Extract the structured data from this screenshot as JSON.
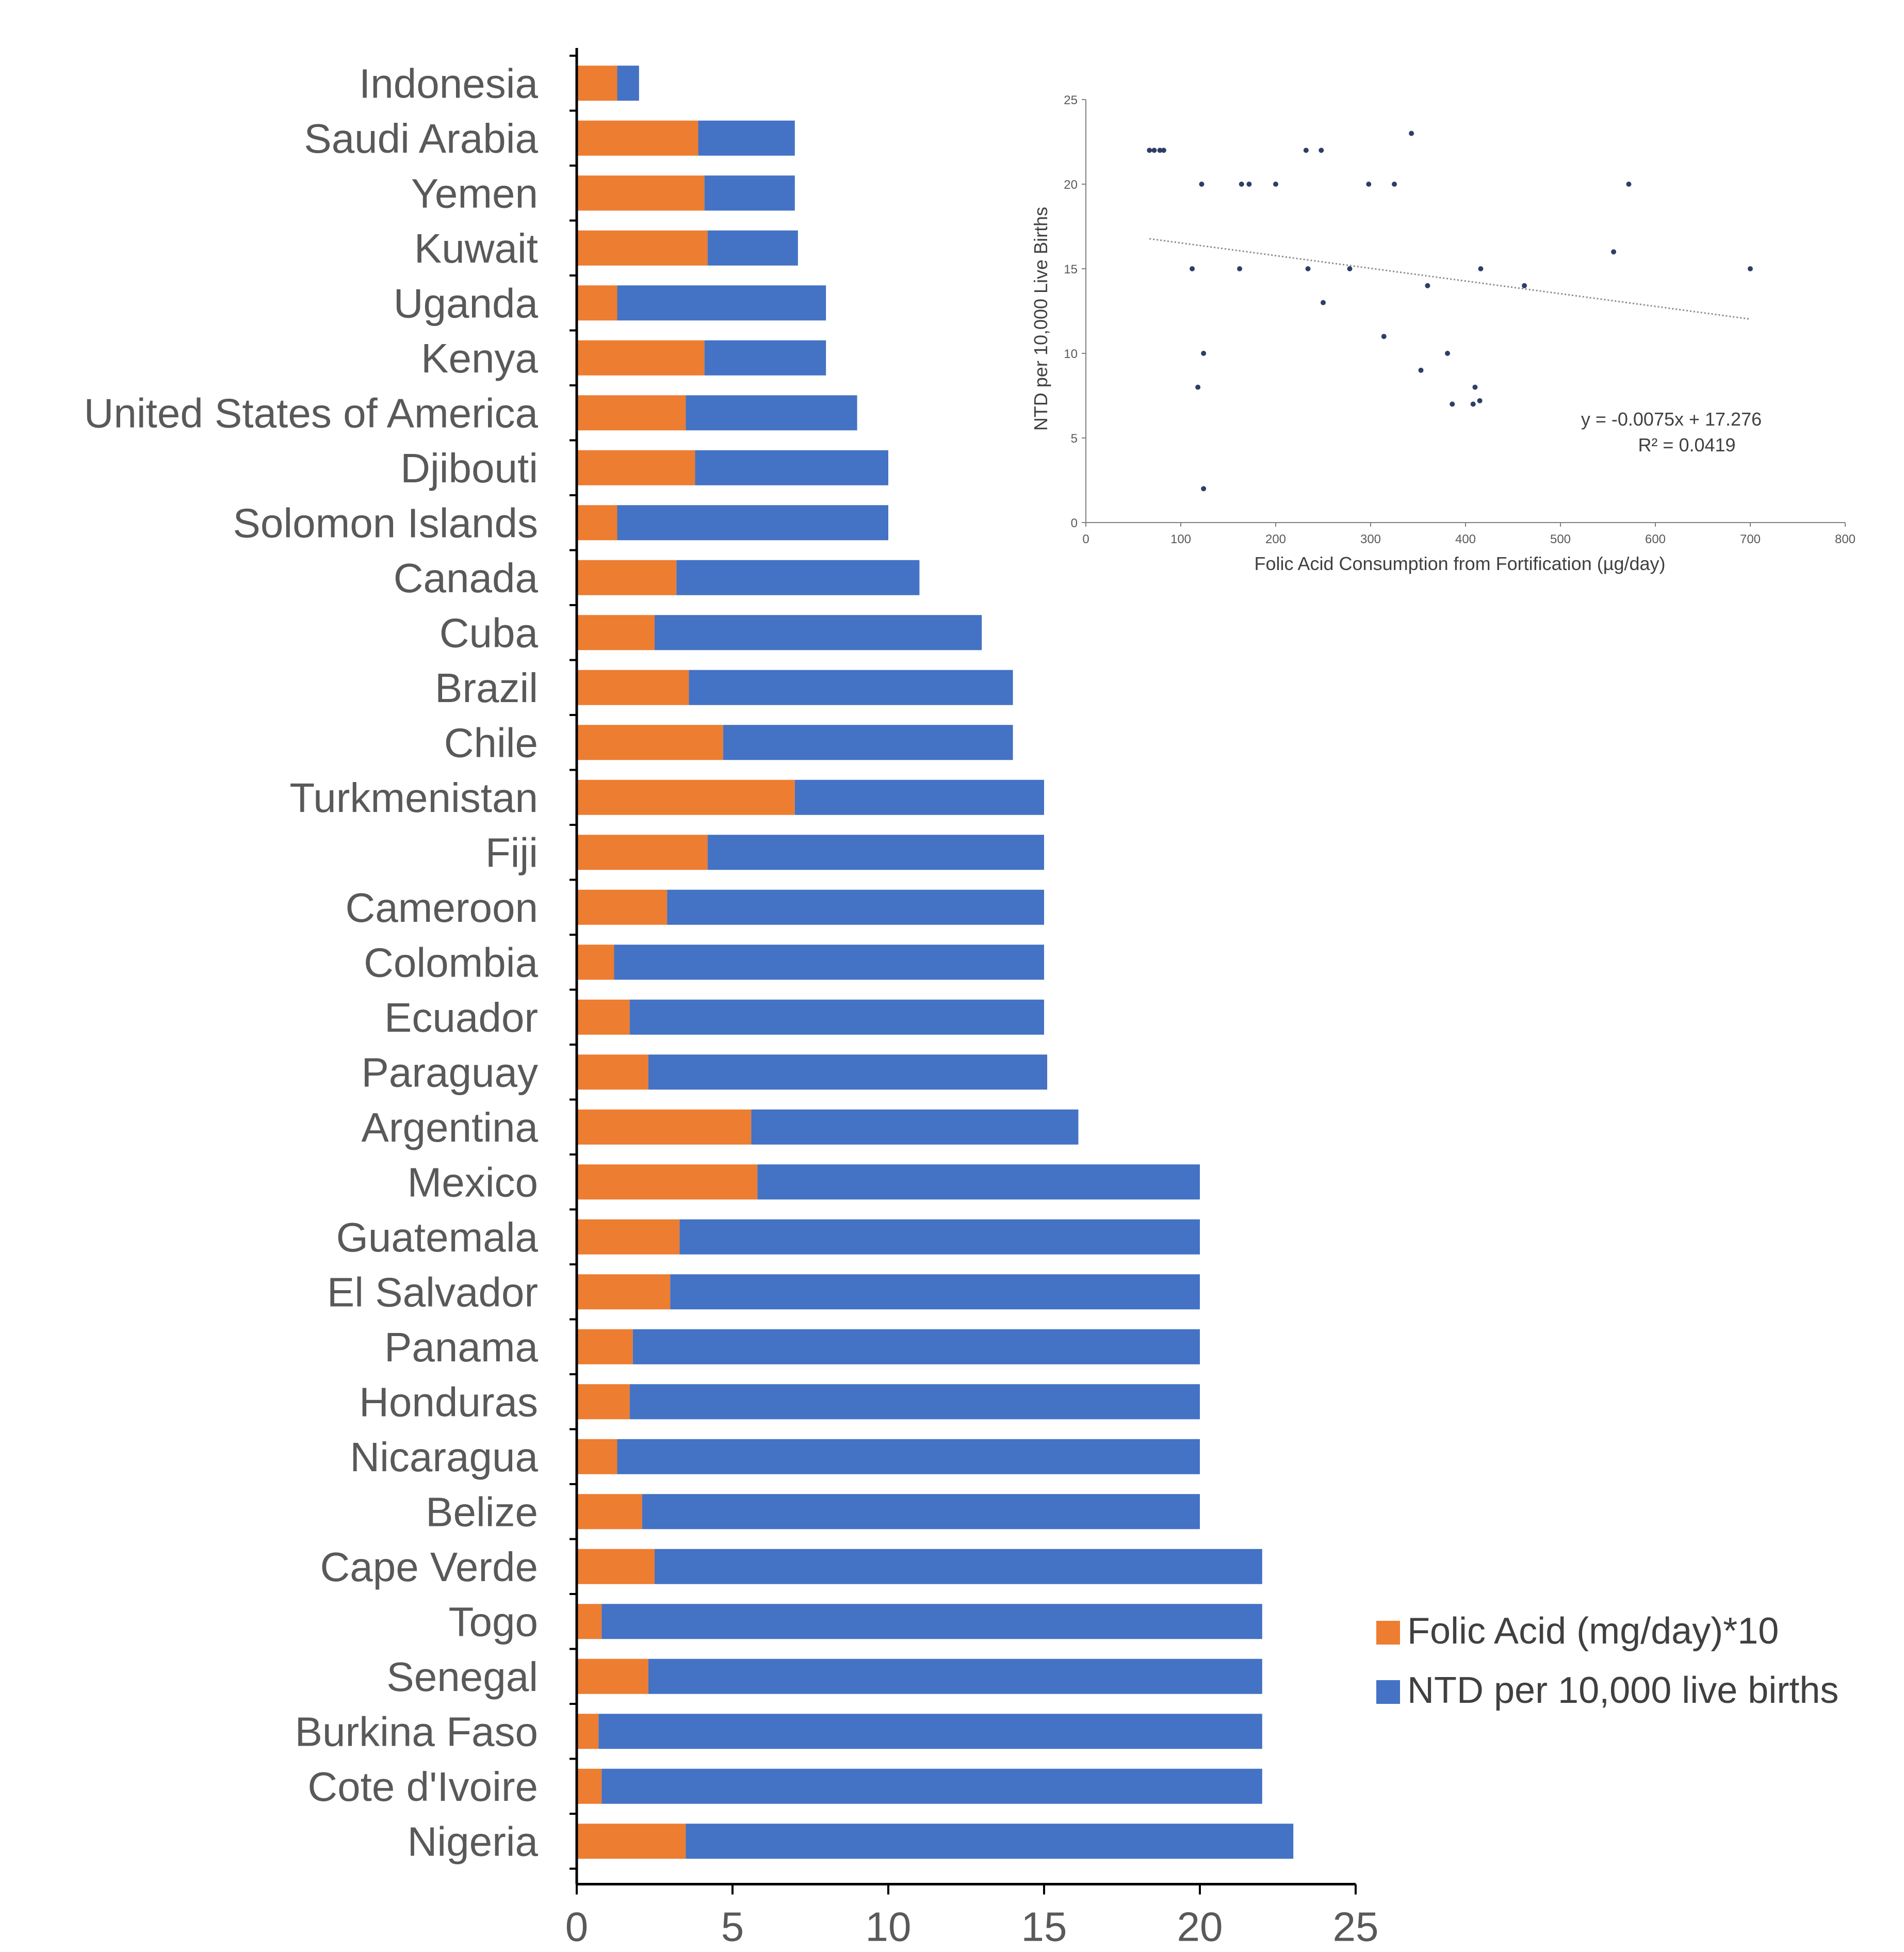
{
  "colors": {
    "folic": "#ED7D31",
    "ntd": "#4472C4",
    "axis": "#000000",
    "point": "#2E3F66",
    "trend": "#8C8C8C"
  },
  "chart_data": [
    {
      "type": "bar",
      "orientation": "horizontal",
      "stacked": true,
      "categories": [
        "Indonesia",
        "Saudi Arabia",
        "Yemen",
        "Kuwait",
        "Uganda",
        "Kenya",
        "United States of America",
        "Djibouti",
        "Solomon Islands",
        "Canada",
        "Cuba",
        "Brazil",
        "Chile",
        "Turkmenistan",
        "Fiji",
        "Cameroon",
        "Colombia",
        "Ecuador",
        "Paraguay",
        "Argentina",
        "Mexico",
        "Guatemala",
        "El Salvador",
        "Panama",
        "Honduras",
        "Nicaragua",
        "Belize",
        "Cape Verde",
        "Togo",
        "Senegal",
        "Burkina Faso",
        "Cote d'Ivoire",
        "Nigeria"
      ],
      "series": [
        {
          "name": "Folic Acid (mg/day)*10",
          "values": [
            1.3,
            3.9,
            4.1,
            4.2,
            1.3,
            4.1,
            3.5,
            3.8,
            1.3,
            3.2,
            2.5,
            3.6,
            4.7,
            7.0,
            4.2,
            2.9,
            1.2,
            1.7,
            2.3,
            5.6,
            5.8,
            3.3,
            3.0,
            1.8,
            1.7,
            1.3,
            2.1,
            2.5,
            0.8,
            2.3,
            0.7,
            0.8,
            3.5
          ]
        },
        {
          "name": "NTD per 10,000 live births",
          "values": [
            0.7,
            3.1,
            2.9,
            2.9,
            6.7,
            3.9,
            5.5,
            6.2,
            8.7,
            7.8,
            10.5,
            10.4,
            9.3,
            8.0,
            10.8,
            12.1,
            13.8,
            13.3,
            12.8,
            10.5,
            14.2,
            16.7,
            17.0,
            18.2,
            18.3,
            18.7,
            17.9,
            19.5,
            21.2,
            19.7,
            21.3,
            21.2,
            19.5
          ]
        }
      ],
      "xlim": [
        0,
        25
      ],
      "xticks": [
        "0",
        "5",
        "10",
        "15",
        "20",
        "25"
      ],
      "legend": "right",
      "legend_entries": [
        "Folic Acid (mg/day)*10",
        "NTD per 10,000 live births"
      ]
    },
    {
      "type": "scatter",
      "xlabel": "Folic Acid Consumption from Fortification (µg/day)",
      "ylabel": "NTD per 10,000 Live Births",
      "xlim": [
        0,
        800
      ],
      "ylim": [
        0,
        25
      ],
      "xticks": [
        "0",
        "100",
        "200",
        "300",
        "400",
        "500",
        "600",
        "700",
        "800"
      ],
      "yticks": [
        "0",
        "5",
        "10",
        "15",
        "20",
        "25"
      ],
      "points": [
        [
          67,
          22
        ],
        [
          72,
          22
        ],
        [
          78,
          22
        ],
        [
          82,
          22
        ],
        [
          112,
          15
        ],
        [
          118,
          8
        ],
        [
          122,
          20
        ],
        [
          124,
          10
        ],
        [
          124,
          2
        ],
        [
          162,
          15
        ],
        [
          164,
          20
        ],
        [
          172,
          20
        ],
        [
          200,
          20
        ],
        [
          232,
          22
        ],
        [
          234,
          15
        ],
        [
          248,
          22
        ],
        [
          250,
          13
        ],
        [
          278,
          15
        ],
        [
          298,
          20
        ],
        [
          314,
          11
        ],
        [
          325,
          20
        ],
        [
          343,
          23
        ],
        [
          353,
          9
        ],
        [
          360,
          14
        ],
        [
          381,
          10
        ],
        [
          386,
          7
        ],
        [
          408,
          7
        ],
        [
          410,
          8
        ],
        [
          415,
          7.2
        ],
        [
          416,
          15
        ],
        [
          462,
          14
        ],
        [
          556,
          16
        ],
        [
          572,
          20
        ],
        [
          700,
          15
        ]
      ],
      "trendline": {
        "slope": -0.0075,
        "intercept": 17.276,
        "x_range": [
          67,
          700
        ]
      },
      "equation": "y = -0.0075x + 17.276",
      "r_squared": "R² = 0.0419"
    }
  ]
}
